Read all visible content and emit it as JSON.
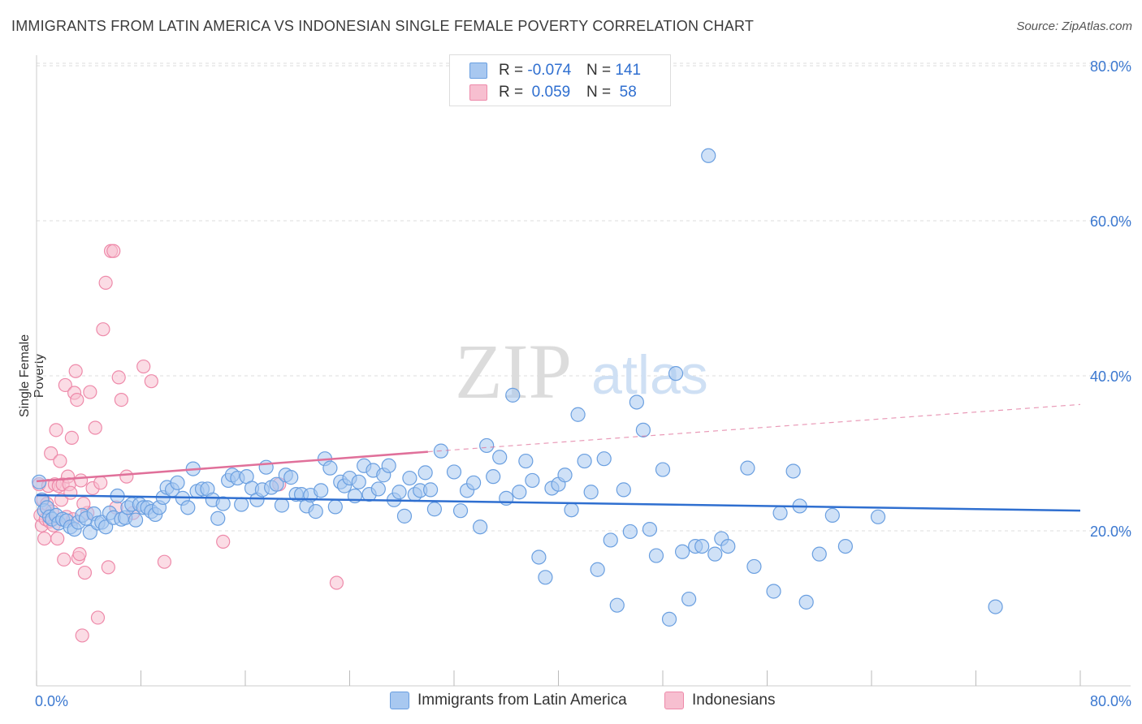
{
  "title": "IMMIGRANTS FROM LATIN AMERICA VS INDONESIAN SINGLE FEMALE POVERTY CORRELATION CHART",
  "source": "Source: ZipAtlas.com",
  "watermark": {
    "zip": "ZIP",
    "atlas": "atlas"
  },
  "colors": {
    "blue_fill": "#a8c8f0",
    "blue_stroke": "#6a9fe0",
    "blue_line": "#2f6fd0",
    "pink_fill": "#f7bfd0",
    "pink_stroke": "#ee8aaa",
    "pink_line": "#e0709a",
    "axis_text": "#3b78d0",
    "grid": "#dddddd"
  },
  "legend": {
    "series": [
      {
        "r_label": "R =",
        "r_value": "-0.074",
        "n_label": "N =",
        "n_value": "141"
      },
      {
        "r_label": "R =",
        "r_value": "0.059",
        "n_label": "N =",
        "n_value": "58"
      }
    ]
  },
  "chart_data": {
    "type": "scatter",
    "title": "IMMIGRANTS FROM LATIN AMERICA VS INDONESIAN SINGLE FEMALE POVERTY CORRELATION CHART",
    "xlabel": "",
    "ylabel": "Single Female Poverty",
    "xlim": [
      0,
      80
    ],
    "ylim": [
      0,
      80
    ],
    "x_tick_labels": [
      "0.0%",
      "80.0%"
    ],
    "y_tick_labels": [
      "20.0%",
      "40.0%",
      "60.0%",
      "80.0%"
    ],
    "y_ticks": [
      20,
      40,
      60,
      80
    ],
    "grid": true,
    "legend_placement": "bottom",
    "series": [
      {
        "name": "Immigrants from Latin America",
        "color": "#a8c8f0",
        "trend": {
          "x": [
            0,
            80
          ],
          "y": [
            24.6,
            22.6
          ],
          "dashed_extension": false
        },
        "points": [
          [
            0.2,
            26.3
          ],
          [
            0.4,
            24.0
          ],
          [
            0.6,
            22.6
          ],
          [
            0.8,
            23.0
          ],
          [
            1.0,
            21.8
          ],
          [
            1.2,
            21.5
          ],
          [
            1.5,
            22.0
          ],
          [
            1.7,
            21.0
          ],
          [
            2.0,
            21.5
          ],
          [
            2.3,
            21.3
          ],
          [
            2.6,
            20.5
          ],
          [
            2.9,
            20.2
          ],
          [
            3.2,
            21.1
          ],
          [
            3.5,
            22.0
          ],
          [
            3.8,
            21.6
          ],
          [
            4.1,
            19.8
          ],
          [
            4.4,
            22.2
          ],
          [
            4.7,
            21.0
          ],
          [
            5.0,
            21.1
          ],
          [
            5.3,
            20.5
          ],
          [
            5.6,
            22.3
          ],
          [
            5.9,
            21.7
          ],
          [
            6.2,
            24.5
          ],
          [
            6.5,
            21.5
          ],
          [
            6.8,
            21.7
          ],
          [
            7.0,
            23.0
          ],
          [
            7.3,
            23.4
          ],
          [
            7.6,
            21.4
          ],
          [
            7.9,
            23.4
          ],
          [
            8.2,
            23.0
          ],
          [
            8.5,
            23.0
          ],
          [
            8.8,
            22.5
          ],
          [
            9.1,
            22.1
          ],
          [
            9.4,
            23.0
          ],
          [
            9.7,
            24.3
          ],
          [
            10.0,
            25.6
          ],
          [
            10.4,
            25.3
          ],
          [
            10.8,
            26.2
          ],
          [
            11.2,
            24.2
          ],
          [
            11.6,
            23.0
          ],
          [
            12.0,
            28.0
          ],
          [
            12.3,
            25.1
          ],
          [
            12.7,
            25.4
          ],
          [
            13.1,
            25.4
          ],
          [
            13.5,
            24.0
          ],
          [
            13.9,
            21.6
          ],
          [
            14.3,
            23.5
          ],
          [
            14.7,
            26.5
          ],
          [
            15.0,
            27.2
          ],
          [
            15.4,
            26.8
          ],
          [
            15.7,
            23.4
          ],
          [
            16.1,
            27.0
          ],
          [
            16.5,
            25.5
          ],
          [
            16.9,
            24.0
          ],
          [
            17.3,
            25.3
          ],
          [
            17.6,
            28.2
          ],
          [
            18.0,
            25.6
          ],
          [
            18.4,
            26.0
          ],
          [
            18.8,
            23.3
          ],
          [
            19.1,
            27.2
          ],
          [
            19.5,
            26.9
          ],
          [
            19.9,
            24.7
          ],
          [
            20.3,
            24.7
          ],
          [
            20.7,
            23.2
          ],
          [
            21.0,
            24.6
          ],
          [
            21.4,
            22.5
          ],
          [
            21.8,
            25.2
          ],
          [
            22.1,
            29.3
          ],
          [
            22.5,
            28.1
          ],
          [
            22.9,
            23.1
          ],
          [
            23.3,
            26.3
          ],
          [
            23.6,
            25.8
          ],
          [
            24.0,
            26.8
          ],
          [
            24.4,
            24.5
          ],
          [
            24.7,
            26.3
          ],
          [
            25.1,
            28.4
          ],
          [
            25.5,
            24.7
          ],
          [
            25.8,
            27.8
          ],
          [
            26.2,
            25.4
          ],
          [
            26.6,
            27.2
          ],
          [
            27.0,
            28.4
          ],
          [
            27.4,
            24.0
          ],
          [
            27.8,
            25.0
          ],
          [
            28.2,
            21.9
          ],
          [
            28.6,
            26.8
          ],
          [
            29.0,
            24.7
          ],
          [
            29.4,
            25.2
          ],
          [
            29.8,
            27.5
          ],
          [
            30.2,
            25.3
          ],
          [
            30.5,
            22.8
          ],
          [
            31.0,
            30.3
          ],
          [
            32.0,
            27.6
          ],
          [
            32.5,
            22.6
          ],
          [
            33.0,
            25.2
          ],
          [
            33.5,
            26.2
          ],
          [
            34.0,
            20.5
          ],
          [
            34.5,
            31.0
          ],
          [
            35.0,
            27.0
          ],
          [
            35.5,
            29.5
          ],
          [
            36.0,
            24.2
          ],
          [
            36.5,
            37.5
          ],
          [
            37.0,
            25.0
          ],
          [
            37.5,
            29.0
          ],
          [
            38.0,
            26.5
          ],
          [
            38.5,
            16.6
          ],
          [
            39.0,
            14.0
          ],
          [
            39.5,
            25.5
          ],
          [
            40.0,
            26.0
          ],
          [
            40.5,
            27.2
          ],
          [
            41.0,
            22.7
          ],
          [
            41.5,
            35.0
          ],
          [
            42.0,
            29.0
          ],
          [
            42.5,
            25.0
          ],
          [
            43.0,
            15.0
          ],
          [
            43.5,
            29.3
          ],
          [
            44.0,
            18.8
          ],
          [
            44.5,
            10.4
          ],
          [
            45.0,
            25.3
          ],
          [
            45.5,
            19.9
          ],
          [
            46.0,
            36.6
          ],
          [
            46.5,
            33.0
          ],
          [
            47.0,
            20.2
          ],
          [
            47.5,
            16.8
          ],
          [
            48.0,
            27.9
          ],
          [
            48.5,
            8.6
          ],
          [
            49.0,
            40.3
          ],
          [
            49.5,
            17.3
          ],
          [
            50.0,
            11.2
          ],
          [
            50.5,
            18.0
          ],
          [
            51.0,
            18.0
          ],
          [
            51.5,
            68.4
          ],
          [
            52.0,
            17.0
          ],
          [
            52.5,
            19.0
          ],
          [
            53.0,
            18.0
          ],
          [
            54.5,
            28.1
          ],
          [
            55.0,
            15.4
          ],
          [
            56.5,
            12.2
          ],
          [
            57.0,
            22.3
          ],
          [
            58.0,
            27.7
          ],
          [
            58.5,
            23.2
          ],
          [
            59.0,
            10.8
          ],
          [
            60.0,
            17.0
          ],
          [
            61.0,
            22.0
          ],
          [
            62.0,
            18.0
          ],
          [
            64.5,
            21.8
          ],
          [
            73.5,
            10.2
          ]
        ]
      },
      {
        "name": "Indonesians",
        "color": "#f7bfd0",
        "trend": {
          "x": [
            0,
            30
          ],
          "y": [
            26.4,
            30.2
          ],
          "dashed_extension": true,
          "dashed_to": [
            80,
            36.3
          ]
        },
        "points": [
          [
            0.2,
            26.0
          ],
          [
            0.3,
            22.0
          ],
          [
            0.4,
            20.7
          ],
          [
            0.5,
            24.0
          ],
          [
            0.6,
            19.0
          ],
          [
            0.7,
            21.5
          ],
          [
            0.8,
            23.5
          ],
          [
            0.9,
            25.8
          ],
          [
            1.0,
            21.2
          ],
          [
            1.1,
            30.0
          ],
          [
            1.2,
            22.5
          ],
          [
            1.3,
            20.7
          ],
          [
            1.4,
            26.0
          ],
          [
            1.5,
            33.0
          ],
          [
            1.6,
            19.0
          ],
          [
            1.7,
            25.8
          ],
          [
            1.8,
            29.0
          ],
          [
            1.9,
            24.0
          ],
          [
            2.0,
            26.0
          ],
          [
            2.1,
            16.3
          ],
          [
            2.2,
            38.8
          ],
          [
            2.3,
            21.8
          ],
          [
            2.4,
            27.0
          ],
          [
            2.5,
            26.0
          ],
          [
            2.6,
            24.9
          ],
          [
            2.7,
            32.0
          ],
          [
            2.8,
            21.5
          ],
          [
            2.9,
            37.8
          ],
          [
            3.0,
            40.6
          ],
          [
            3.1,
            36.9
          ],
          [
            3.2,
            16.5
          ],
          [
            3.3,
            17.0
          ],
          [
            3.4,
            26.5
          ],
          [
            3.5,
            6.5
          ],
          [
            3.7,
            14.6
          ],
          [
            3.9,
            22.3
          ],
          [
            4.1,
            37.9
          ],
          [
            4.3,
            25.5
          ],
          [
            4.5,
            33.3
          ],
          [
            4.7,
            8.8
          ],
          [
            4.9,
            26.2
          ],
          [
            5.1,
            46.0
          ],
          [
            5.3,
            52.0
          ],
          [
            5.5,
            15.3
          ],
          [
            5.7,
            56.1
          ],
          [
            5.9,
            56.1
          ],
          [
            6.1,
            23.0
          ],
          [
            6.3,
            39.8
          ],
          [
            6.5,
            36.9
          ],
          [
            6.9,
            27.0
          ],
          [
            7.4,
            22.3
          ],
          [
            8.2,
            41.2
          ],
          [
            8.8,
            39.3
          ],
          [
            9.8,
            16.0
          ],
          [
            14.3,
            18.6
          ],
          [
            18.6,
            26.0
          ],
          [
            23.0,
            13.3
          ],
          [
            3.6,
            23.5
          ]
        ]
      }
    ]
  }
}
